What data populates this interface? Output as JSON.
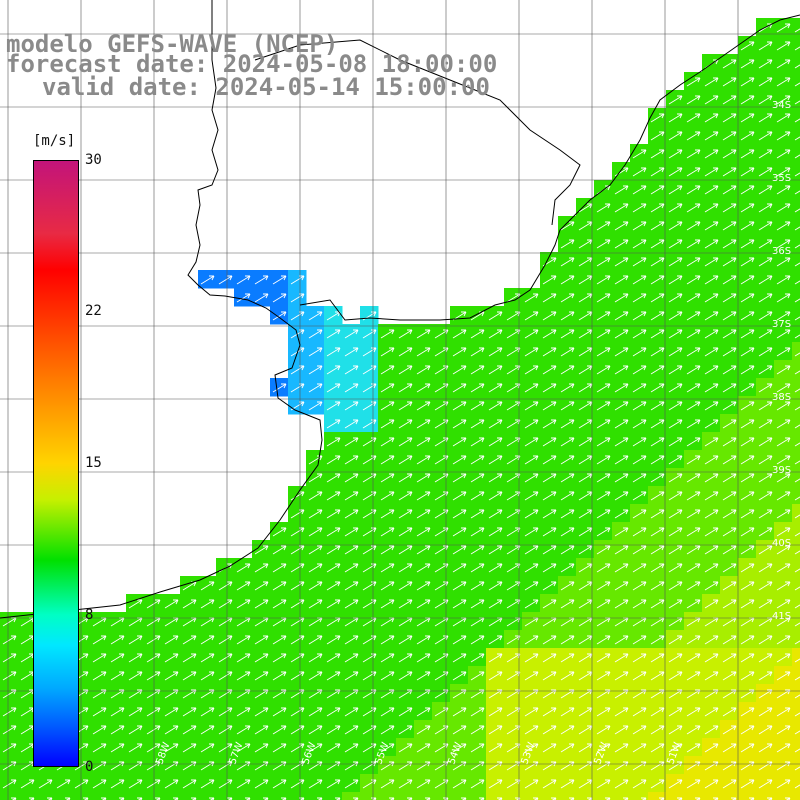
{
  "title": {
    "model": "modelo GEFS-WAVE (NCEP)",
    "forecast": "forecast date: 2024-05-08 18:00:00",
    "valid": "valid date: 2024-05-14 15:00:00"
  },
  "colorbar": {
    "unit": "[m/s]",
    "ticks": [
      "30",
      "22",
      "15",
      "8",
      "0"
    ]
  },
  "lat_labels": [
    "34S",
    "35S",
    "36S",
    "37S",
    "38S",
    "39S",
    "40S",
    "41S"
  ],
  "lon_labels": [
    "58W",
    "57W",
    "56W",
    "55W",
    "54W",
    "53W",
    "52W",
    "51W"
  ],
  "colors": {
    "land": "#ffffff",
    "coast": "#000000",
    "grid": "#555555",
    "arrow": "#ffffff",
    "title": "#8a8a8a"
  }
}
